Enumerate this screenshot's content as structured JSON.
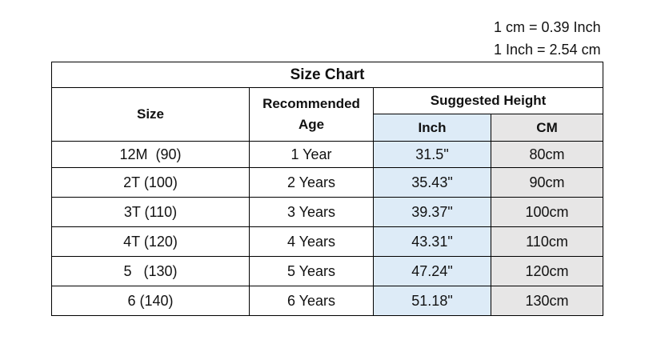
{
  "notes": [
    "1 cm = 0.39 Inch",
    "1 Inch = 2.54 cm"
  ],
  "table": {
    "title": "Size Chart",
    "headers": {
      "size": "Size",
      "age": "Recommended Age",
      "height": "Suggested Height",
      "inch": "Inch",
      "cm": "CM"
    },
    "rows": [
      [
        "12M  (90)",
        "1 Year",
        "31.5\"",
        "80cm"
      ],
      [
        "2T (100)",
        "2 Years",
        "35.43\"",
        "90cm"
      ],
      [
        "3T (110)",
        "3 Years",
        "39.37\"",
        "100cm"
      ],
      [
        "4T (120)",
        "4 Years",
        "43.31\"",
        "110cm"
      ],
      [
        "5   (130)",
        "5 Years",
        "47.24\"",
        "120cm"
      ],
      [
        "6 (140)",
        "6 Years",
        "51.18\"",
        "130cm"
      ]
    ]
  }
}
